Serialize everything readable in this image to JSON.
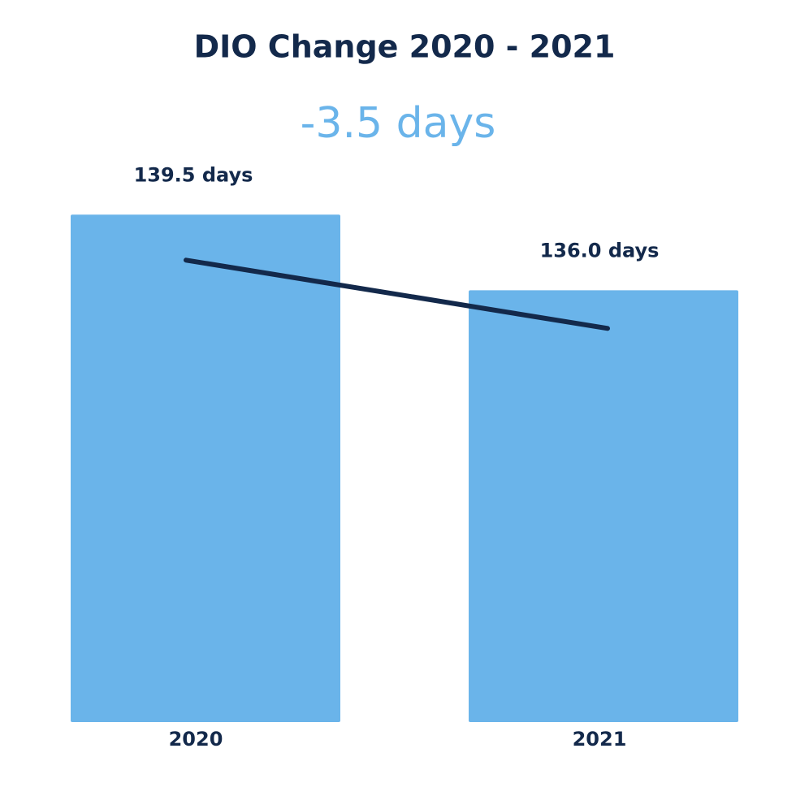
{
  "chart_data": {
    "type": "bar",
    "title": "DIO Change 2020 - 2021",
    "subtitle": "-3.5 days",
    "categories": [
      "2020",
      "2021"
    ],
    "values": [
      139.5,
      136.0
    ],
    "value_labels": [
      "139.5 days",
      "136.0 days"
    ],
    "color": "#6ab4ea",
    "line_color": "#13294b",
    "ylim": [
      116,
      140
    ]
  }
}
